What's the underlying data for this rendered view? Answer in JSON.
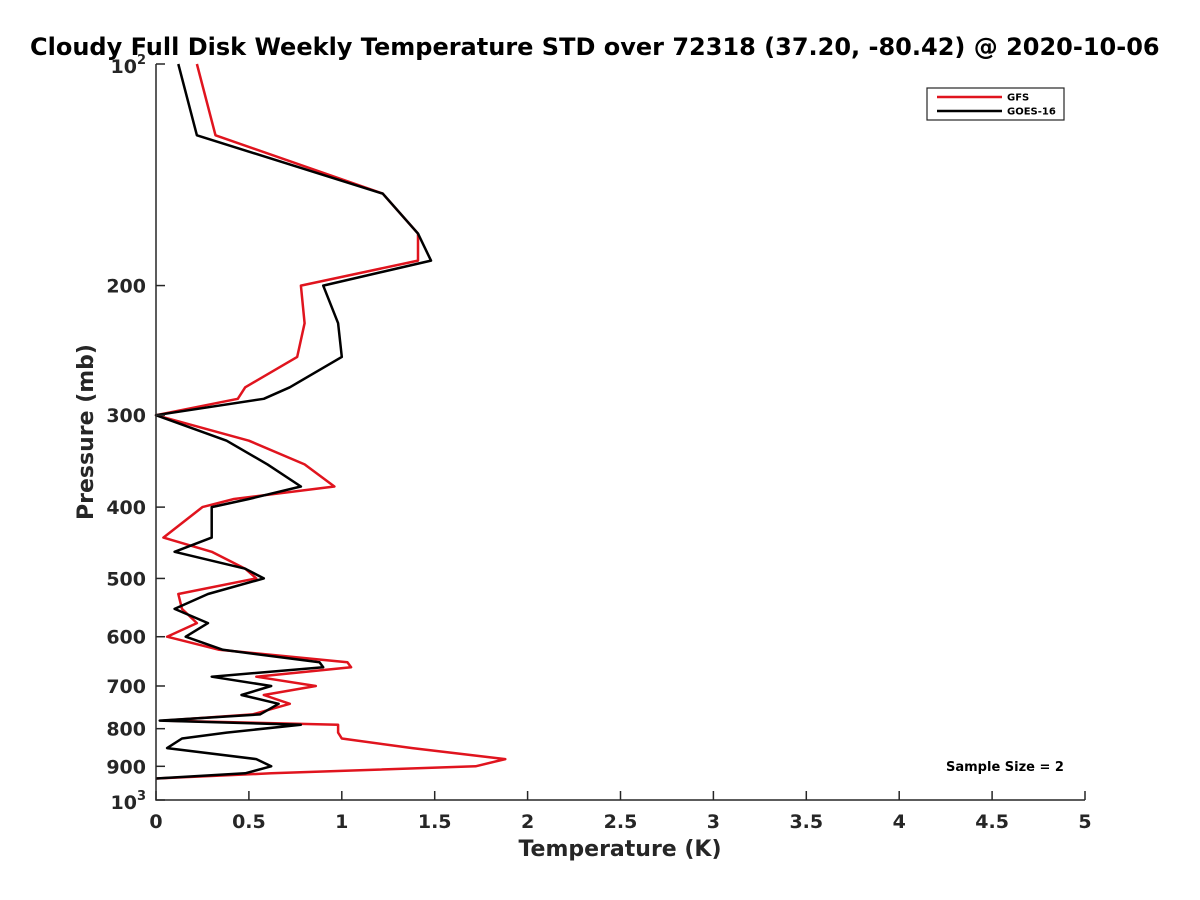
{
  "chart_data": {
    "type": "line",
    "title": "Cloudy Full Disk Weekly Temperature STD over 72318 (37.20, -80.42) @ 2020-10-06",
    "xlabel": "Temperature (K)",
    "ylabel": "Pressure (mb)",
    "xlim": [
      0,
      5
    ],
    "ylim": [
      100,
      1000
    ],
    "yscale": "log",
    "y_reversed": true,
    "grid": false,
    "legend_position": "top-right",
    "x_ticks": [
      0,
      0.5,
      1,
      1.5,
      2,
      2.5,
      3,
      3.5,
      4,
      4.5,
      5
    ],
    "x_tick_labels": [
      "0",
      "0.5",
      "1",
      "1.5",
      "2",
      "2.5",
      "3",
      "3.5",
      "4",
      "4.5",
      "5"
    ],
    "y_ticks": [
      200,
      300,
      400,
      500,
      600,
      700,
      800,
      900
    ],
    "y_tick_labels": [
      "200",
      "300",
      "400",
      "500",
      "600",
      "700",
      "800",
      "900"
    ],
    "y_decade_labels": [
      {
        "value": 100,
        "base": "10",
        "exp": "2"
      },
      {
        "value": 1000,
        "base": "10",
        "exp": "3"
      }
    ],
    "annotation": "Sample Size = 2",
    "series": [
      {
        "name": "GFS",
        "color": "#e0141e",
        "points": [
          [
            0.22,
            100
          ],
          [
            0.32,
            125
          ],
          [
            1.22,
            150
          ],
          [
            1.41,
            170
          ],
          [
            1.41,
            185
          ],
          [
            0.78,
            200
          ],
          [
            0.8,
            225
          ],
          [
            0.76,
            250
          ],
          [
            0.48,
            275
          ],
          [
            0.44,
            285
          ],
          [
            0.0,
            300
          ],
          [
            0.5,
            325
          ],
          [
            0.8,
            350
          ],
          [
            0.96,
            375
          ],
          [
            0.42,
            390
          ],
          [
            0.25,
            400
          ],
          [
            0.04,
            440
          ],
          [
            0.3,
            460
          ],
          [
            0.48,
            485
          ],
          [
            0.54,
            500
          ],
          [
            0.12,
            525
          ],
          [
            0.14,
            550
          ],
          [
            0.22,
            575
          ],
          [
            0.06,
            600
          ],
          [
            0.34,
            625
          ],
          [
            1.03,
            650
          ],
          [
            1.05,
            660
          ],
          [
            0.54,
            680
          ],
          [
            0.86,
            700
          ],
          [
            0.58,
            720
          ],
          [
            0.72,
            740
          ],
          [
            0.52,
            765
          ],
          [
            0.04,
            780
          ],
          [
            0.98,
            790
          ],
          [
            0.98,
            810
          ],
          [
            1.0,
            825
          ],
          [
            1.38,
            850
          ],
          [
            1.88,
            880
          ],
          [
            1.72,
            900
          ],
          [
            0.62,
            920
          ],
          [
            0.0,
            935
          ]
        ]
      },
      {
        "name": "GOES-16",
        "color": "#000000",
        "points": [
          [
            0.12,
            100
          ],
          [
            0.22,
            125
          ],
          [
            1.22,
            150
          ],
          [
            1.41,
            170
          ],
          [
            1.48,
            185
          ],
          [
            0.9,
            200
          ],
          [
            0.98,
            225
          ],
          [
            1.0,
            250
          ],
          [
            0.72,
            275
          ],
          [
            0.58,
            285
          ],
          [
            0.0,
            300
          ],
          [
            0.38,
            325
          ],
          [
            0.6,
            350
          ],
          [
            0.78,
            375
          ],
          [
            0.5,
            390
          ],
          [
            0.3,
            400
          ],
          [
            0.3,
            440
          ],
          [
            0.1,
            460
          ],
          [
            0.48,
            485
          ],
          [
            0.58,
            500
          ],
          [
            0.28,
            525
          ],
          [
            0.1,
            550
          ],
          [
            0.28,
            575
          ],
          [
            0.16,
            600
          ],
          [
            0.36,
            625
          ],
          [
            0.88,
            650
          ],
          [
            0.9,
            660
          ],
          [
            0.3,
            680
          ],
          [
            0.62,
            700
          ],
          [
            0.46,
            720
          ],
          [
            0.66,
            740
          ],
          [
            0.56,
            765
          ],
          [
            0.02,
            780
          ],
          [
            0.78,
            790
          ],
          [
            0.38,
            810
          ],
          [
            0.14,
            825
          ],
          [
            0.06,
            850
          ],
          [
            0.54,
            880
          ],
          [
            0.62,
            900
          ],
          [
            0.48,
            920
          ],
          [
            0.0,
            935
          ]
        ]
      }
    ]
  }
}
